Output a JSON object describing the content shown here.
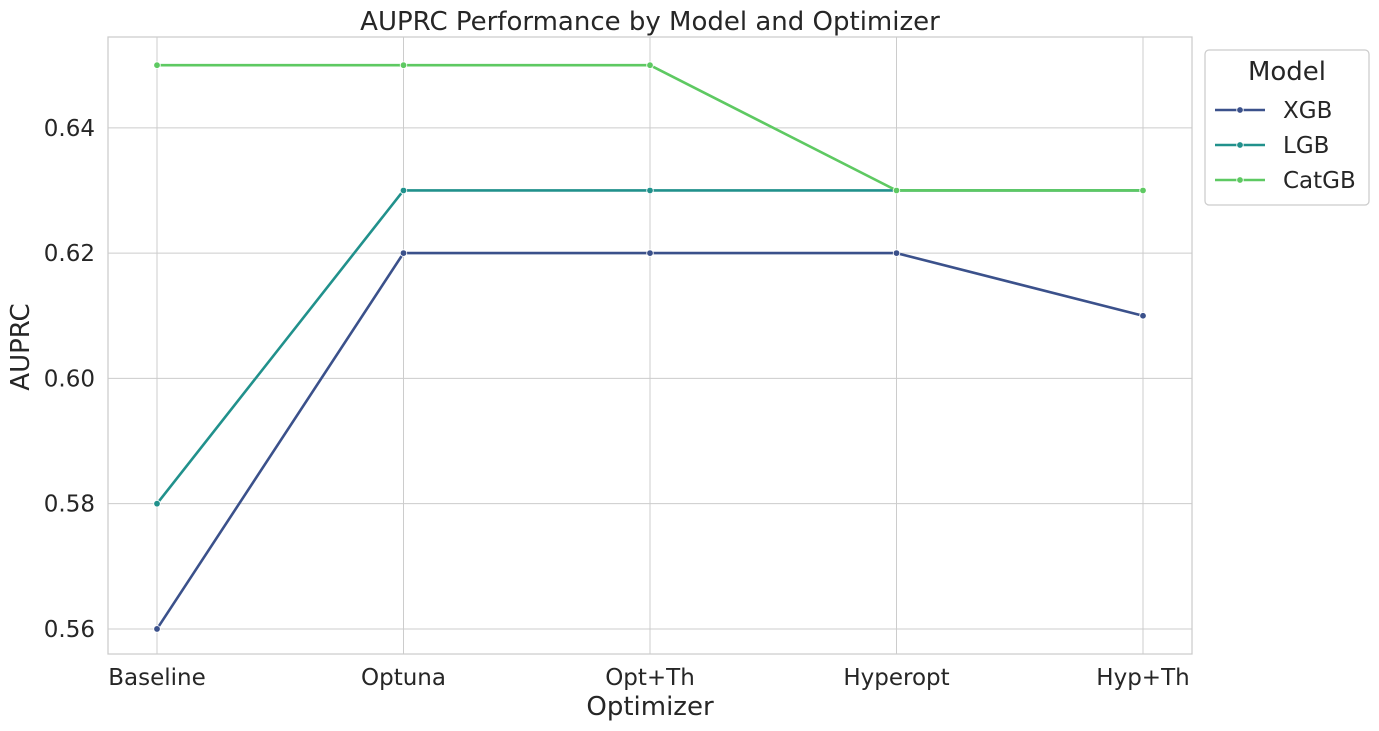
{
  "chart_data": {
    "type": "line",
    "title": "AUPRC Performance by Model and Optimizer",
    "xlabel": "Optimizer",
    "ylabel": "AUPRC",
    "categories": [
      "Baseline",
      "Optuna",
      "Opt+Th",
      "Hyperopt",
      "Hyp+Th"
    ],
    "ylim": [
      0.556,
      0.6545
    ],
    "yticks": [
      0.56,
      0.58,
      0.6,
      0.62,
      0.64
    ],
    "ytick_labels": [
      "0.56",
      "0.58",
      "0.60",
      "0.62",
      "0.64"
    ],
    "grid": true,
    "legend": {
      "title": "Model",
      "placement": "outside-top-right"
    },
    "series": [
      {
        "name": "XGB",
        "color": "#3b518b",
        "values": [
          0.56,
          0.62,
          0.62,
          0.62,
          0.61
        ]
      },
      {
        "name": "LGB",
        "color": "#21918c",
        "values": [
          0.58,
          0.63,
          0.63,
          0.63,
          0.63
        ]
      },
      {
        "name": "CatGB",
        "color": "#5ec962",
        "values": [
          0.65,
          0.65,
          0.65,
          0.63,
          0.63
        ]
      }
    ]
  }
}
